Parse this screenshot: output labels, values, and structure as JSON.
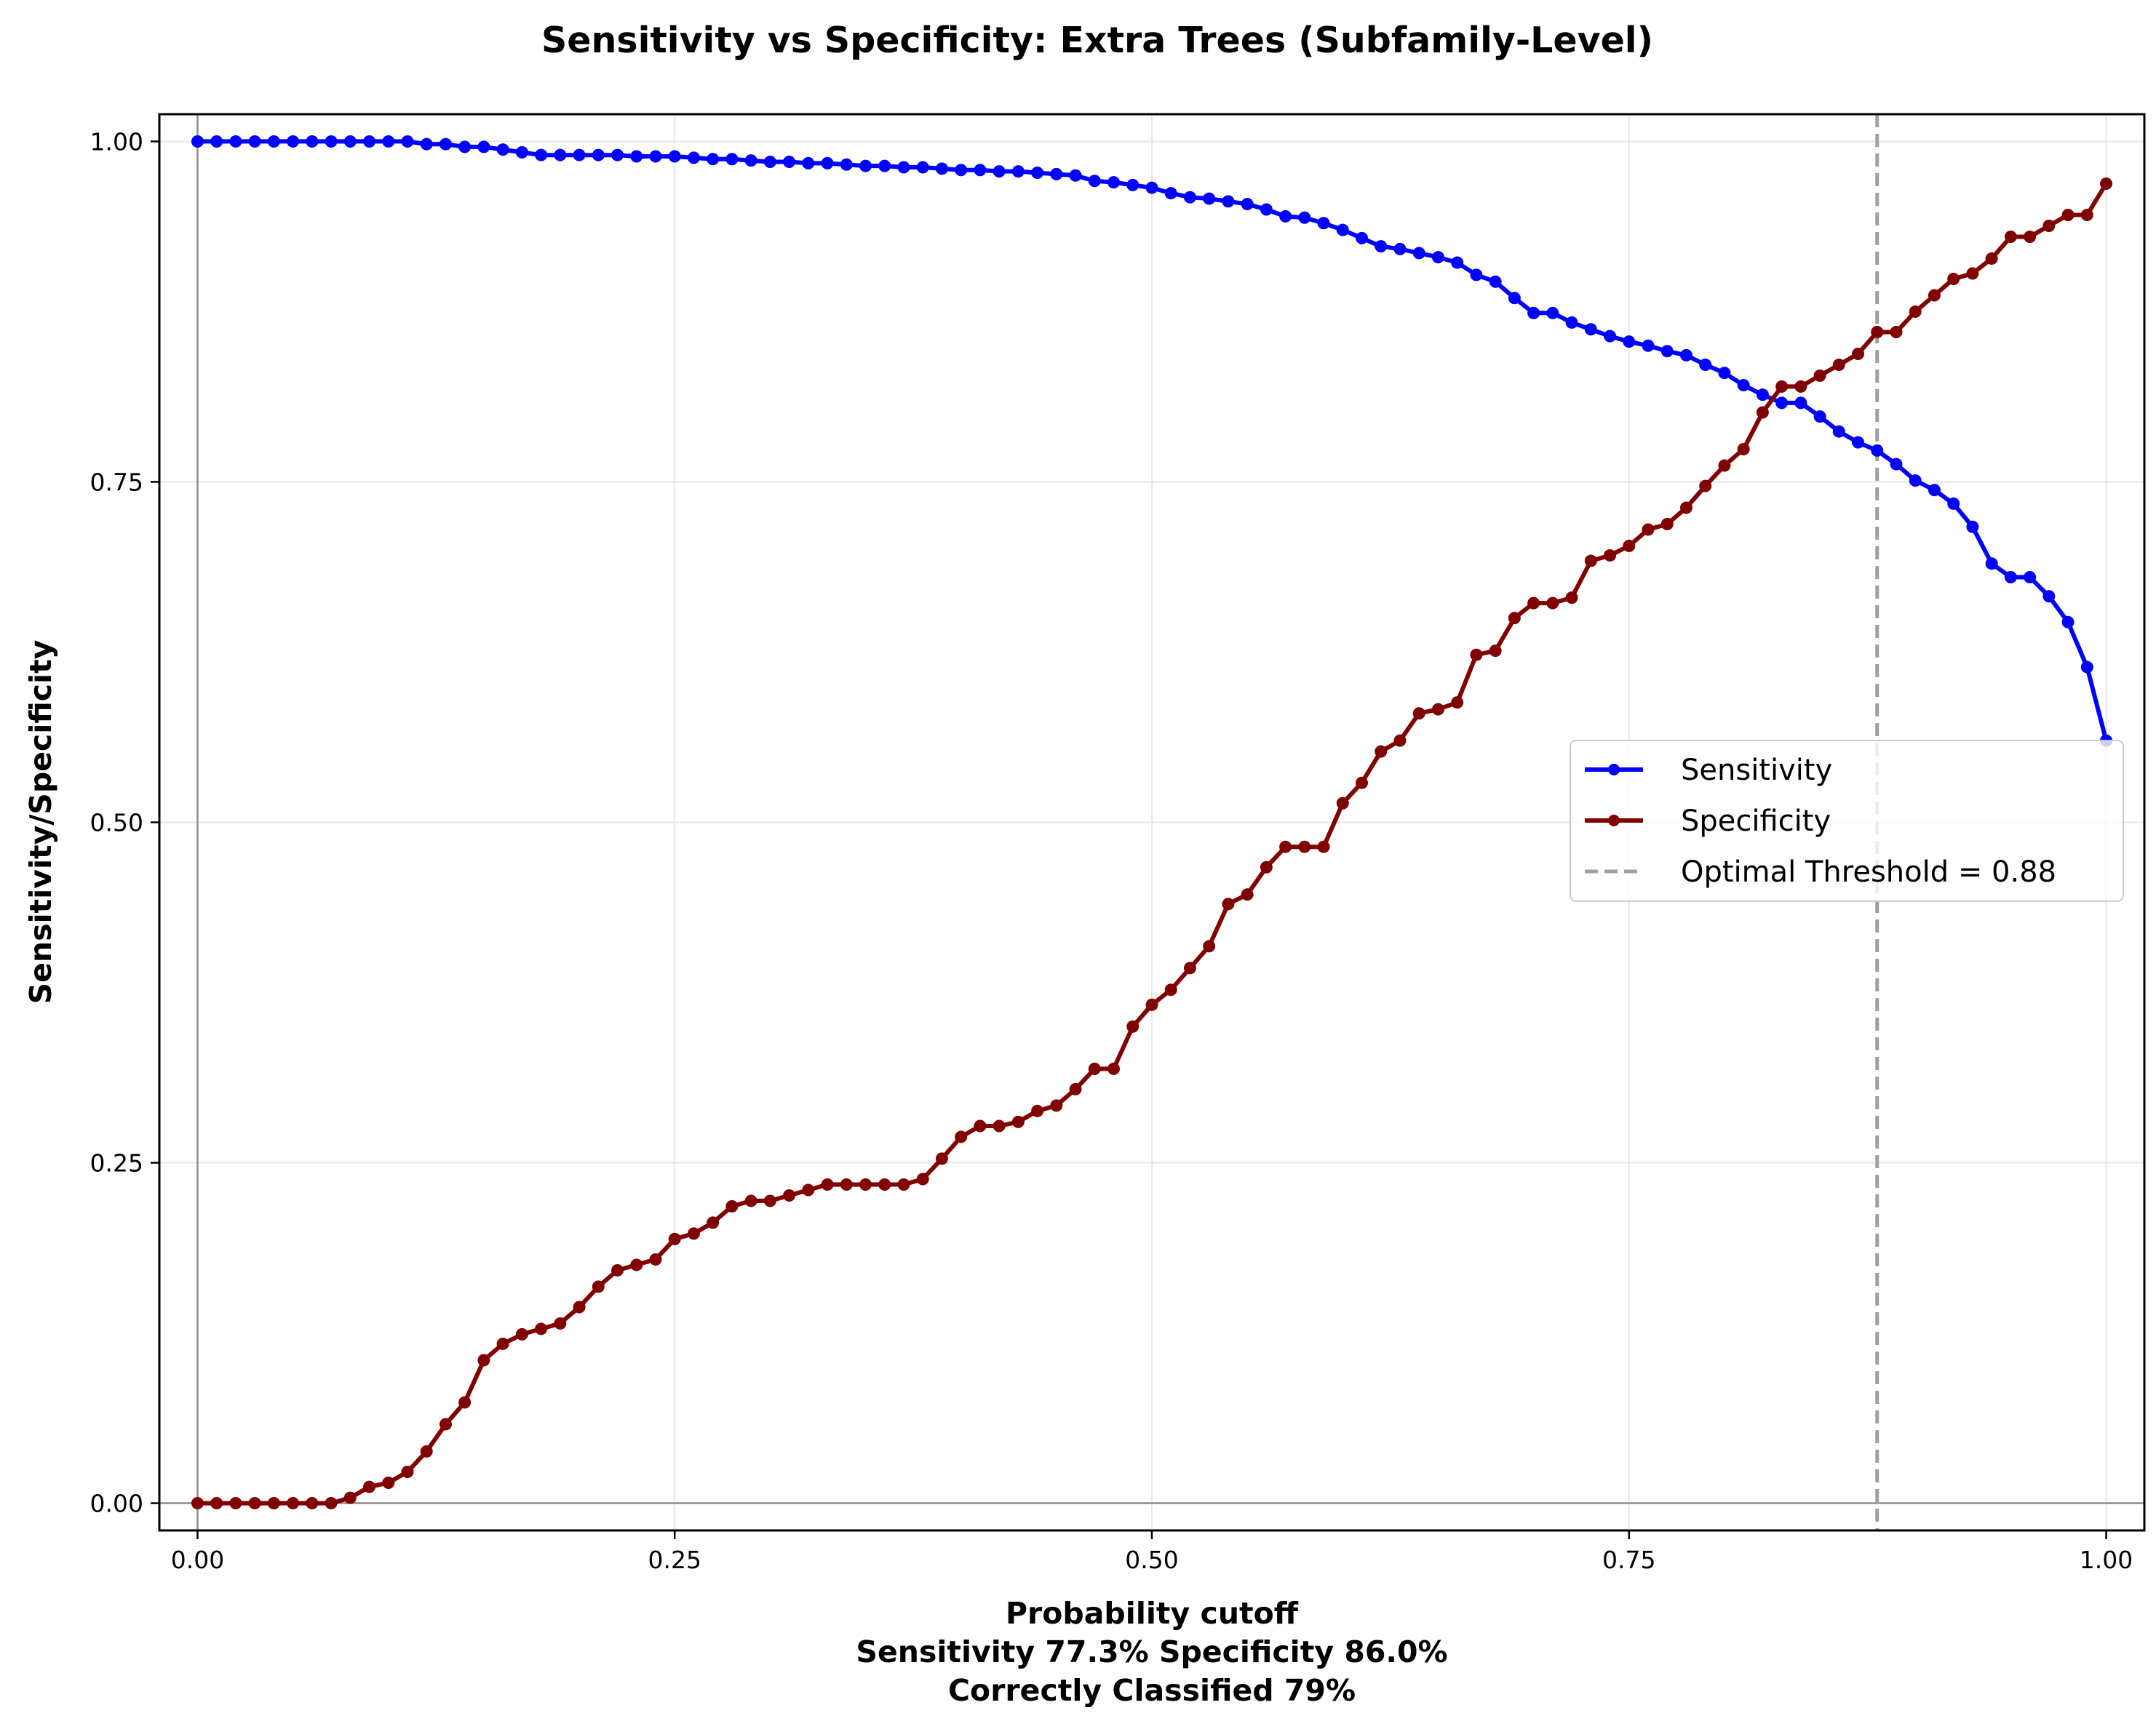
{
  "chart_data": {
    "type": "line",
    "title": "Sensitivity vs Specificity: Extra Trees (Subfamily-Level)",
    "xlabel": "Probability cutoff",
    "xlabel_lines": [
      "Sensitivity 77.3% Specificity 86.0%",
      "Correctly Classified 79%"
    ],
    "ylabel": "Sensitivity/Specificity",
    "xlim": [
      -0.02,
      1.02
    ],
    "ylim": [
      -0.02,
      1.02
    ],
    "xticks": [
      0.0,
      0.25,
      0.5,
      0.75,
      1.0
    ],
    "xtick_labels": [
      "0.00",
      "0.25",
      "0.50",
      "0.75",
      "1.00"
    ],
    "yticks": [
      0.0,
      0.25,
      0.5,
      0.75,
      1.0
    ],
    "ytick_labels": [
      "0.00",
      "0.25",
      "0.50",
      "0.75",
      "1.00"
    ],
    "grid": true,
    "legend_position": "center-right",
    "threshold": {
      "name": "Optimal Threshold = 0.88",
      "x": 0.88,
      "color": "#a0a0a0"
    },
    "x": [
      0.0,
      0.01,
      0.02,
      0.03,
      0.04,
      0.05,
      0.06,
      0.07,
      0.08,
      0.09,
      0.1,
      0.11,
      0.12,
      0.13,
      0.14,
      0.15,
      0.16,
      0.17,
      0.18,
      0.19,
      0.2,
      0.21,
      0.22,
      0.23,
      0.24,
      0.25,
      0.26,
      0.27,
      0.28,
      0.29,
      0.3,
      0.31,
      0.32,
      0.33,
      0.34,
      0.35,
      0.36,
      0.37,
      0.38,
      0.39,
      0.4,
      0.41,
      0.42,
      0.43,
      0.44,
      0.45,
      0.46,
      0.47,
      0.48,
      0.49,
      0.5,
      0.51,
      0.52,
      0.53,
      0.54,
      0.55,
      0.56,
      0.57,
      0.58,
      0.59,
      0.6,
      0.61,
      0.62,
      0.63,
      0.64,
      0.65,
      0.66,
      0.67,
      0.68,
      0.69,
      0.7,
      0.71,
      0.72,
      0.73,
      0.74,
      0.75,
      0.76,
      0.77,
      0.78,
      0.79,
      0.8,
      0.81,
      0.82,
      0.83,
      0.84,
      0.85,
      0.86,
      0.87,
      0.88,
      0.89,
      0.9,
      0.91,
      0.92,
      0.93,
      0.94,
      0.95,
      0.96,
      0.97,
      0.98,
      0.99,
      1.0
    ],
    "series": [
      {
        "name": "Sensitivity",
        "color": "#0000ff",
        "values": [
          1.0,
          1.0,
          1.0,
          1.0,
          1.0,
          1.0,
          1.0,
          1.0,
          1.0,
          1.0,
          1.0,
          1.0,
          0.998,
          0.998,
          0.996,
          0.996,
          0.994,
          0.992,
          0.99,
          0.99,
          0.99,
          0.99,
          0.99,
          0.989,
          0.989,
          0.989,
          0.988,
          0.987,
          0.987,
          0.986,
          0.985,
          0.985,
          0.984,
          0.984,
          0.983,
          0.982,
          0.982,
          0.981,
          0.981,
          0.98,
          0.979,
          0.979,
          0.978,
          0.978,
          0.977,
          0.976,
          0.975,
          0.971,
          0.97,
          0.968,
          0.966,
          0.962,
          0.959,
          0.958,
          0.956,
          0.954,
          0.95,
          0.945,
          0.944,
          0.94,
          0.935,
          0.929,
          0.923,
          0.921,
          0.918,
          0.915,
          0.911,
          0.902,
          0.897,
          0.885,
          0.874,
          0.874,
          0.867,
          0.862,
          0.857,
          0.853,
          0.85,
          0.846,
          0.843,
          0.836,
          0.83,
          0.821,
          0.814,
          0.808,
          0.808,
          0.798,
          0.787,
          0.779,
          0.773,
          0.763,
          0.751,
          0.744,
          0.734,
          0.717,
          0.69,
          0.68,
          0.68,
          0.666,
          0.647,
          0.614,
          0.56
        ]
      },
      {
        "name": "Specificity",
        "color": "#800000",
        "values": [
          0.0,
          0.0,
          0.0,
          0.0,
          0.0,
          0.0,
          0.0,
          0.0,
          0.004,
          0.012,
          0.015,
          0.023,
          0.038,
          0.058,
          0.074,
          0.105,
          0.117,
          0.124,
          0.128,
          0.132,
          0.144,
          0.159,
          0.171,
          0.175,
          0.179,
          0.194,
          0.198,
          0.206,
          0.218,
          0.222,
          0.222,
          0.226,
          0.23,
          0.234,
          0.234,
          0.234,
          0.234,
          0.234,
          0.238,
          0.253,
          0.269,
          0.277,
          0.277,
          0.28,
          0.288,
          0.292,
          0.304,
          0.319,
          0.319,
          0.35,
          0.366,
          0.377,
          0.393,
          0.409,
          0.44,
          0.447,
          0.467,
          0.482,
          0.482,
          0.482,
          0.514,
          0.529,
          0.552,
          0.56,
          0.58,
          0.583,
          0.588,
          0.623,
          0.626,
          0.65,
          0.661,
          0.661,
          0.665,
          0.692,
          0.696,
          0.703,
          0.715,
          0.719,
          0.731,
          0.747,
          0.762,
          0.774,
          0.801,
          0.82,
          0.82,
          0.828,
          0.836,
          0.844,
          0.86,
          0.86,
          0.875,
          0.887,
          0.899,
          0.903,
          0.914,
          0.93,
          0.93,
          0.938,
          0.946,
          0.946,
          0.969
        ]
      }
    ]
  }
}
